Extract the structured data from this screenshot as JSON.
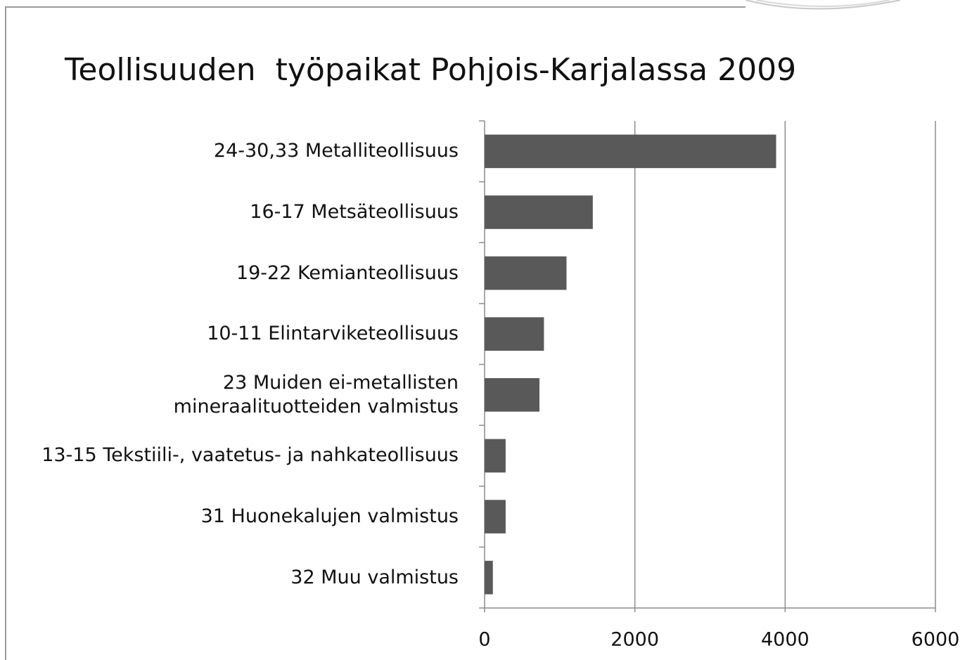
{
  "chart_data": {
    "type": "barh",
    "title": "Teollisuuden  työpaikat Pohjois-Karjalassa 2009",
    "categories": [
      "24-30,33 Metalliteollisuus",
      "16-17 Metsäteollisuus",
      "19-22 Kemianteollisuus",
      "10-11 Elintarviketeollisuus",
      "23 Muiden ei-metallisten\nmineraalituotteiden valmistus",
      "13-15 Tekstiili-, vaatetus- ja nahkateollisuus",
      "31 Huonekalujen valmistus",
      "32 Muu valmistus"
    ],
    "values": [
      3880,
      1440,
      1090,
      790,
      730,
      280,
      280,
      110
    ],
    "color": "#595959",
    "xlim": [
      0,
      6000
    ],
    "xticks": [
      0,
      2000,
      4000,
      6000
    ],
    "grid": true
  }
}
